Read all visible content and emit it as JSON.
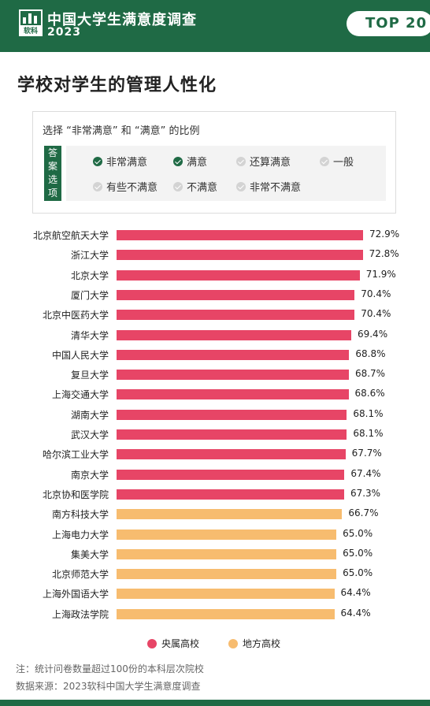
{
  "header": {
    "logo_text": "软科",
    "title": "中国大学生满意度调查",
    "year": "2023",
    "badge": "TOP 20"
  },
  "section_title": "学校对学生的管理人性化",
  "answer_box": {
    "caption": "选择 “非常满意” 和 “满意” 的比例",
    "tag": "答案选项",
    "options": [
      {
        "label": "非常满意",
        "checked": true
      },
      {
        "label": "满意",
        "checked": true
      },
      {
        "label": "还算满意",
        "checked": false
      },
      {
        "label": "一般",
        "checked": false
      },
      {
        "label": "有些不满意",
        "checked": false
      },
      {
        "label": "不满意",
        "checked": false
      },
      {
        "label": "非常不满意",
        "checked": false
      }
    ]
  },
  "chart_data": {
    "type": "bar",
    "orientation": "horizontal",
    "categories": [
      "北京航空航天大学",
      "浙江大学",
      "北京大学",
      "厦门大学",
      "北京中医药大学",
      "清华大学",
      "中国人民大学",
      "复旦大学",
      "上海交通大学",
      "湖南大学",
      "武汉大学",
      "哈尔滨工业大学",
      "南京大学",
      "北京协和医学院",
      "南方科技大学",
      "上海电力大学",
      "集美大学",
      "北京师范大学",
      "上海外国语大学",
      "上海政法学院"
    ],
    "values": [
      72.9,
      72.8,
      71.9,
      70.4,
      70.4,
      69.4,
      68.8,
      68.7,
      68.6,
      68.1,
      68.1,
      67.7,
      67.4,
      67.3,
      66.7,
      65.0,
      65.0,
      65.0,
      64.4,
      64.4
    ],
    "value_labels": [
      "72.9%",
      "72.8%",
      "71.9%",
      "70.4%",
      "70.4%",
      "69.4%",
      "68.8%",
      "68.7%",
      "68.6%",
      "68.1%",
      "68.1%",
      "67.7%",
      "67.4%",
      "67.3%",
      "66.7%",
      "65.0%",
      "65.0%",
      "65.0%",
      "64.4%",
      "64.4%"
    ],
    "group": [
      "central",
      "central",
      "central",
      "central",
      "central",
      "central",
      "central",
      "central",
      "central",
      "central",
      "central",
      "central",
      "central",
      "central",
      "local",
      "local",
      "local",
      "local",
      "local",
      "local"
    ],
    "legend": [
      {
        "key": "central",
        "label": "央属高校",
        "color": "#e74566"
      },
      {
        "key": "local",
        "label": "地方高校",
        "color": "#f7bc6f"
      }
    ],
    "legend_position": "bottom-center",
    "grid": false
  },
  "notes": [
    "注：统计问卷数量超过100份的本科层次院校",
    "数据来源：2023软科中国大学生满意度调查"
  ]
}
